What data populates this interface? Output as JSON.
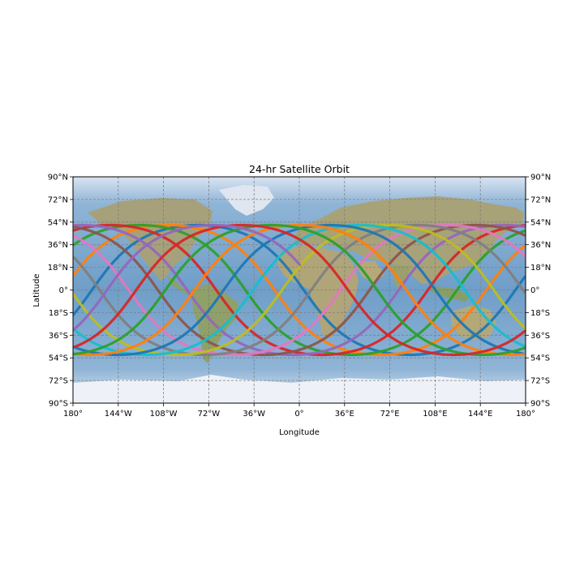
{
  "chart_data": {
    "type": "map-track",
    "title": "24-hr Satellite Orbit",
    "xlabel": "Longitude",
    "ylabel": "Latitude",
    "xlim": [
      -180,
      180
    ],
    "ylim": [
      -90,
      90
    ],
    "grid": true,
    "x_ticks": [
      {
        "value": -180,
        "label": "180°"
      },
      {
        "value": -144,
        "label": "144°W"
      },
      {
        "value": -108,
        "label": "108°W"
      },
      {
        "value": -72,
        "label": "72°W"
      },
      {
        "value": -36,
        "label": "36°W"
      },
      {
        "value": 0,
        "label": "0°"
      },
      {
        "value": 36,
        "label": "36°E"
      },
      {
        "value": 72,
        "label": "72°E"
      },
      {
        "value": 108,
        "label": "108°E"
      },
      {
        "value": 144,
        "label": "144°E"
      },
      {
        "value": 180,
        "label": "180°"
      }
    ],
    "y_ticks": [
      {
        "value": 90,
        "label": "90°N"
      },
      {
        "value": 72,
        "label": "72°N"
      },
      {
        "value": 54,
        "label": "54°N"
      },
      {
        "value": 36,
        "label": "36°N"
      },
      {
        "value": 18,
        "label": "18°N"
      },
      {
        "value": 0,
        "label": "0°"
      },
      {
        "value": -18,
        "label": "18°S"
      },
      {
        "value": -36,
        "label": "36°S"
      },
      {
        "value": -54,
        "label": "54°S"
      },
      {
        "value": -72,
        "label": "72°S"
      },
      {
        "value": -90,
        "label": "90°S"
      }
    ],
    "orbit": {
      "inclination_deg": 51.6,
      "orbits_in_24h": 15.5,
      "start_longitude_deg": -180,
      "start_latitude_deg": -20,
      "westward_shift_per_orbit_deg": 23.2
    },
    "series_colors": [
      "#1f77b4",
      "#ff7f0e",
      "#2ca02c",
      "#d62728",
      "#9467bd",
      "#8c564b",
      "#e377c2",
      "#7f7f7f",
      "#bcbd22",
      "#17becf"
    ],
    "map_colors": {
      "ocean": "#7aa6cb",
      "land": "#a9a37a",
      "land_green": "#7f9a62",
      "ice": "#e8eef7",
      "grid": "#808080"
    }
  }
}
